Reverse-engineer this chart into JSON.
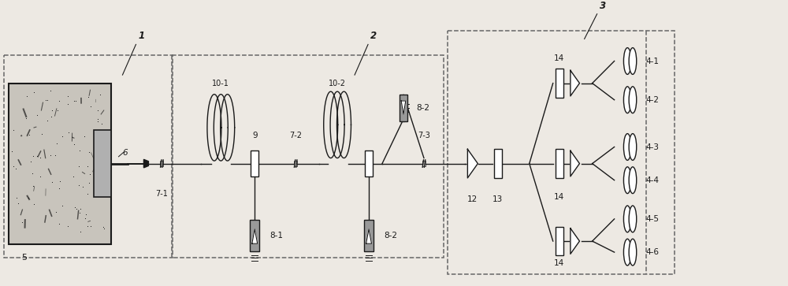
{
  "bg_color": "#ede9e3",
  "line_color": "#1a1a1a",
  "dashed_color": "#666666",
  "gray_fill": "#999999",
  "white_fill": "#ffffff",
  "fig_width": 10.0,
  "fig_height": 3.63,
  "MY": 0.56
}
